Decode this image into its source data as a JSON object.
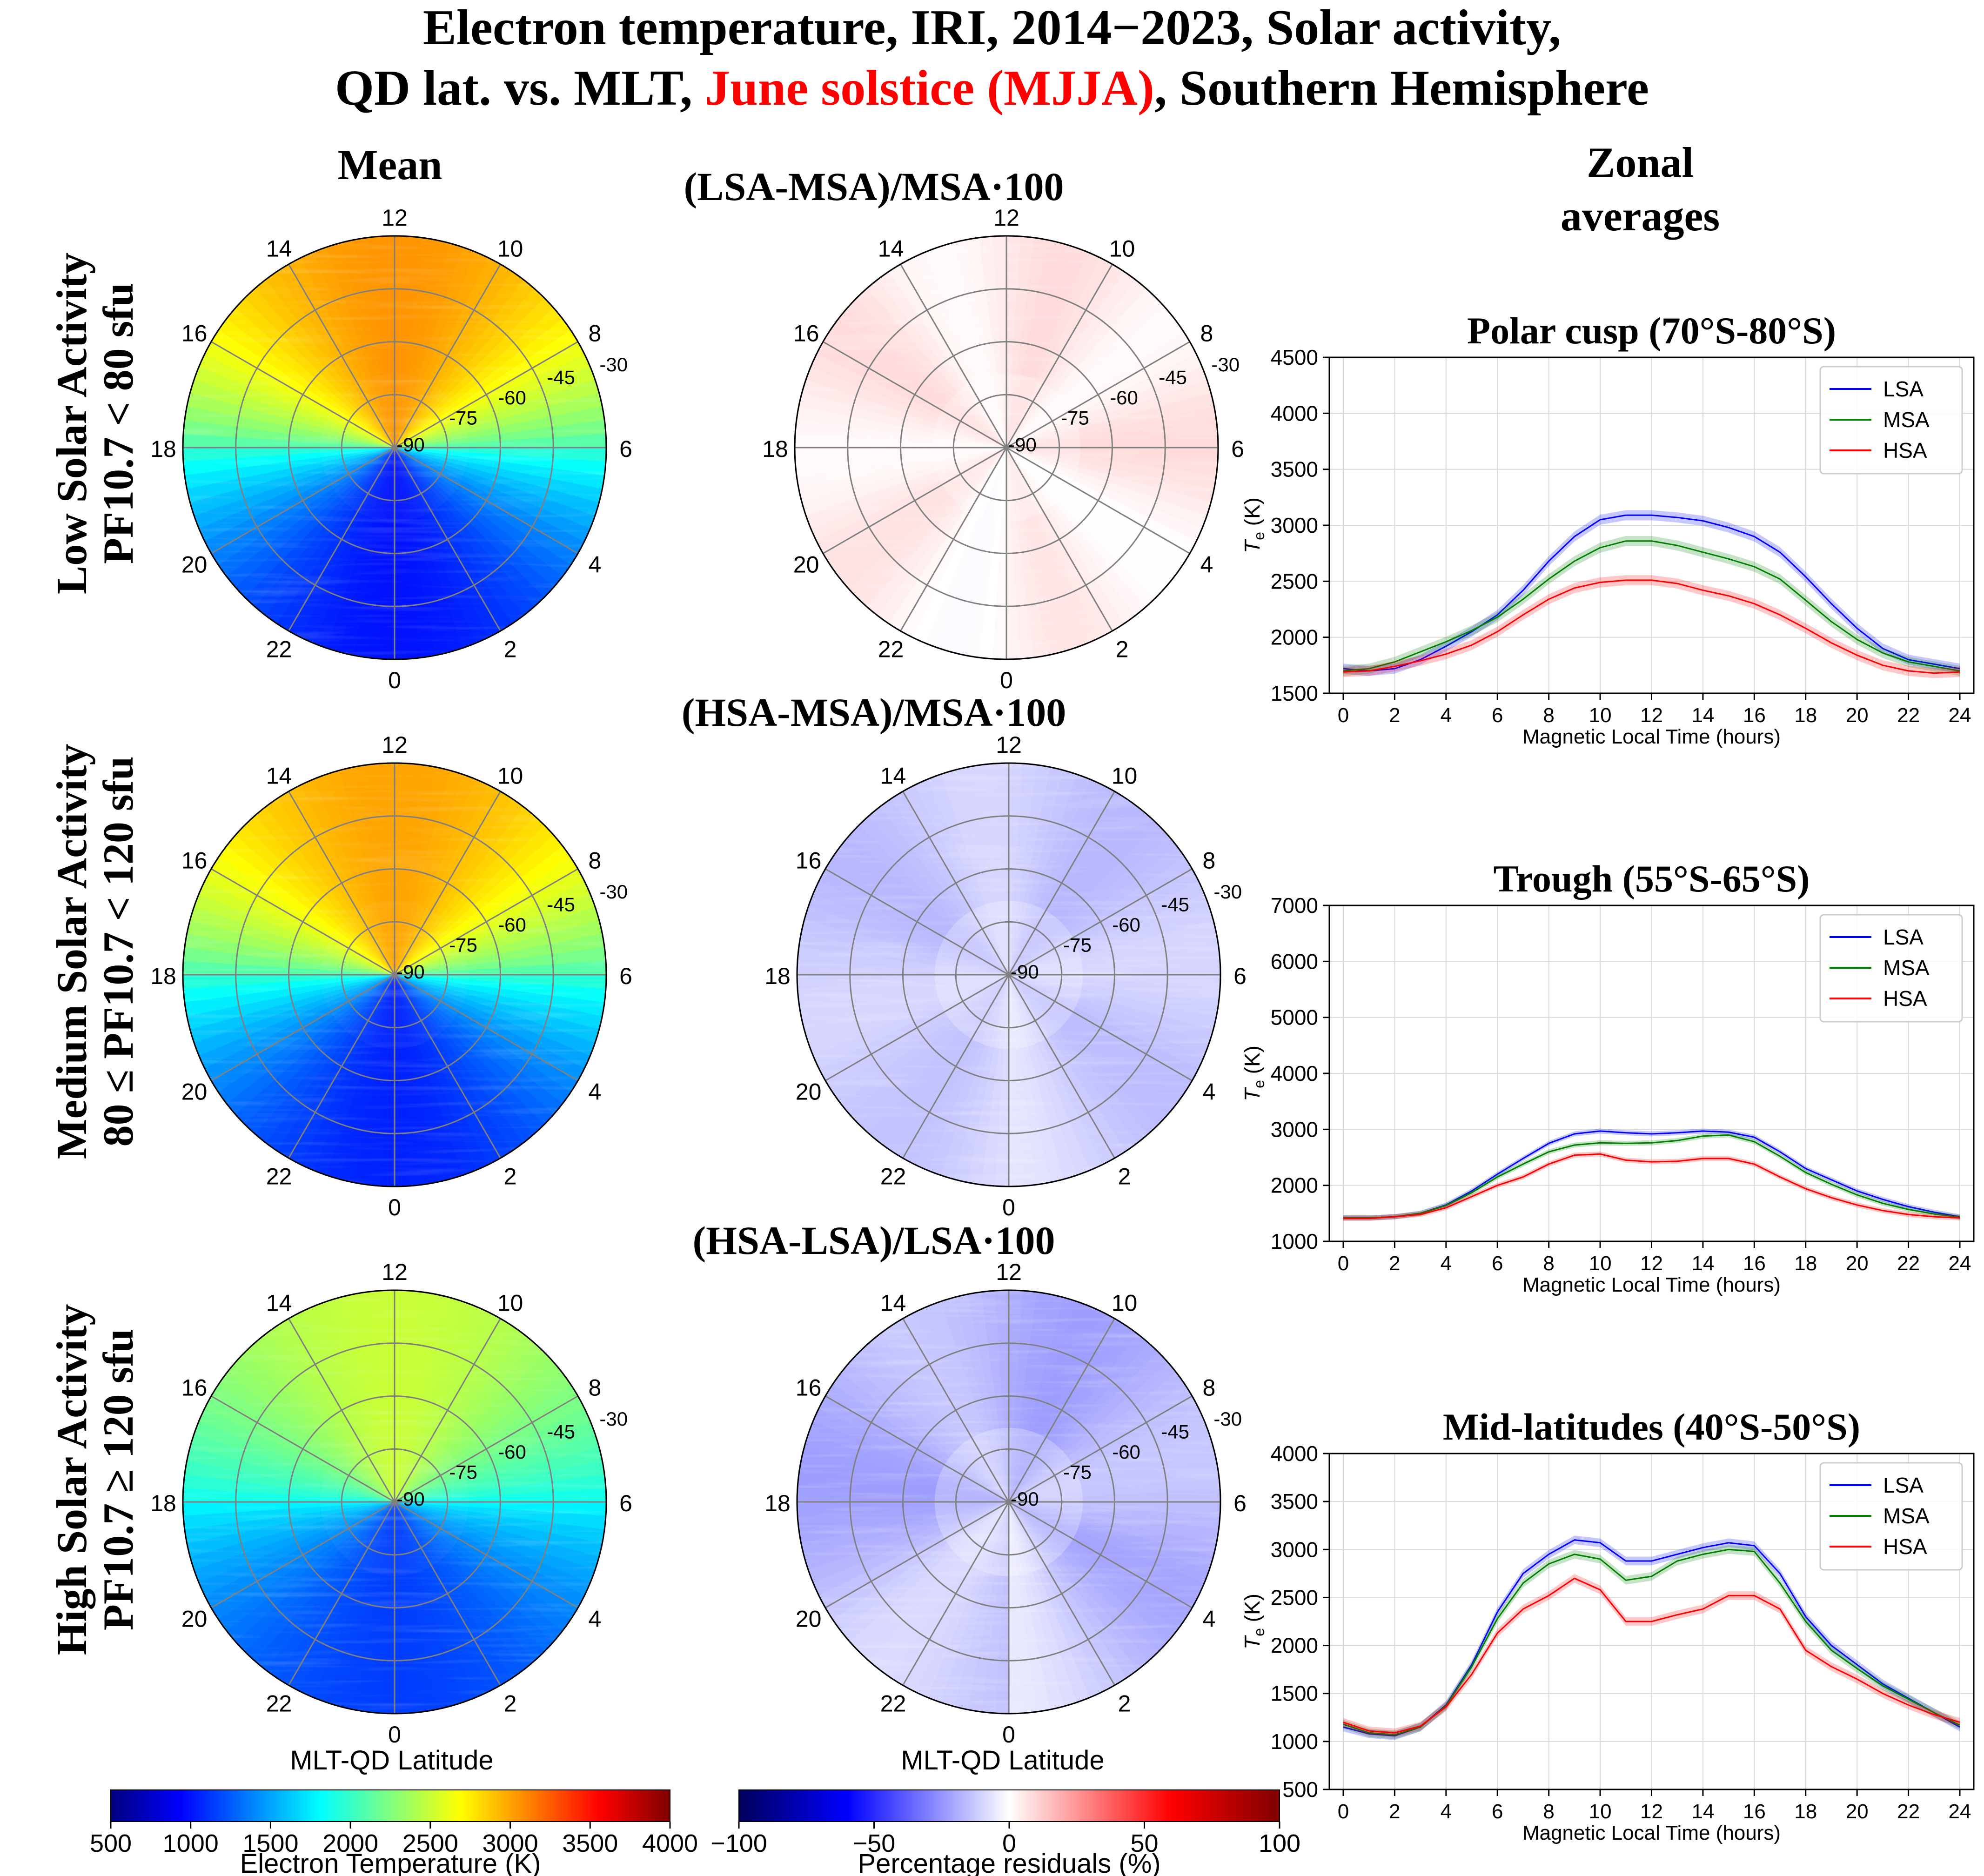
{
  "figure": {
    "title_line1": "Electron temperature, IRI, 2014−2023, Solar activity,",
    "title_line2_a": "QD lat. vs. MLT, ",
    "title_line2_red": "June solstice (MJJA)",
    "title_line2_b": ", Southern Hemisphere",
    "col_mean": "Mean",
    "col_zonal_1": "Zonal",
    "col_zonal_2": "averages",
    "colors": {
      "red": "#ff0000",
      "lsa": "#0000ff",
      "msa": "#008000",
      "hsa": "#ff0000"
    }
  },
  "rows": [
    {
      "line1": "Low Solar Activity",
      "line2": "PF10.7 < 80 sfu"
    },
    {
      "line1": "Medium Solar Activity",
      "line2": "80 ≤ PF10.7 < 120 sfu"
    },
    {
      "line1": "High Solar Activity",
      "line2": "PF10.7 ≥ 120 sfu"
    }
  ],
  "polar": {
    "mlt_labels": [
      "0",
      "2",
      "4",
      "6",
      "8",
      "10",
      "12",
      "14",
      "16",
      "18",
      "20",
      "22"
    ],
    "lat_labels": [
      "-90",
      "-75",
      "-60",
      "-45",
      "-30"
    ],
    "xlabel": "MLT-QD Latitude",
    "mean_max_temp_K": [
      3050,
      3000,
      2500
    ],
    "mean_min_temp_K": [
      1000,
      1050,
      1150
    ],
    "residual_titles": [
      "(LSA-MSA)/MSA·100",
      "(HSA-MSA)/MSA·100",
      "(HSA-LSA)/LSA·100"
    ]
  },
  "colorbars": {
    "temperature": {
      "label": "Electron Temperature (K)",
      "ticks": [
        "500",
        "1000",
        "1500",
        "2000",
        "2500",
        "3000",
        "3500",
        "4000"
      ],
      "range": [
        500,
        4000
      ]
    },
    "residual": {
      "label": "Percentage residuals (%)",
      "ticks": [
        "−100",
        "−50",
        "0",
        "50",
        "100"
      ],
      "range": [
        -100,
        100
      ]
    }
  },
  "chart_data": [
    {
      "type": "line",
      "title": "Polar cusp (70°S-80°S)",
      "xlabel": "Magnetic Local Time (hours)",
      "ylabel_main": "T",
      "ylabel_sub": "e",
      "ylabel_unit": " (K)",
      "xlim": [
        0,
        24
      ],
      "ylim": [
        1500,
        4500
      ],
      "xticks": [
        0,
        2,
        4,
        6,
        8,
        10,
        12,
        14,
        16,
        18,
        20,
        22,
        24
      ],
      "yticks": [
        1500,
        2000,
        2500,
        3000,
        3500,
        4000,
        4500
      ],
      "x": [
        0,
        1,
        2,
        3,
        4,
        5,
        6,
        7,
        8,
        9,
        10,
        11,
        12,
        13,
        14,
        15,
        16,
        17,
        18,
        19,
        20,
        21,
        22,
        23,
        24
      ],
      "series": [
        {
          "name": "LSA",
          "values": [
            1720,
            1700,
            1720,
            1800,
            1920,
            2050,
            2200,
            2420,
            2680,
            2900,
            3050,
            3090,
            3090,
            3070,
            3040,
            2980,
            2900,
            2760,
            2540,
            2300,
            2080,
            1900,
            1800,
            1760,
            1720
          ]
        },
        {
          "name": "MSA",
          "values": [
            1700,
            1720,
            1780,
            1870,
            1960,
            2060,
            2180,
            2340,
            2520,
            2680,
            2800,
            2860,
            2860,
            2820,
            2760,
            2700,
            2630,
            2520,
            2330,
            2140,
            1980,
            1860,
            1780,
            1740,
            1700
          ]
        },
        {
          "name": "HSA",
          "values": [
            1690,
            1700,
            1740,
            1790,
            1850,
            1930,
            2050,
            2200,
            2340,
            2440,
            2490,
            2510,
            2510,
            2480,
            2420,
            2370,
            2300,
            2200,
            2080,
            1950,
            1840,
            1750,
            1700,
            1680,
            1690
          ]
        }
      ]
    },
    {
      "type": "line",
      "title": "Trough (55°S-65°S)",
      "xlabel": "Magnetic Local Time (hours)",
      "ylabel_main": "T",
      "ylabel_sub": "e",
      "ylabel_unit": " (K)",
      "xlim": [
        0,
        24
      ],
      "ylim": [
        1000,
        7000
      ],
      "xticks": [
        0,
        2,
        4,
        6,
        8,
        10,
        12,
        14,
        16,
        18,
        20,
        22,
        24
      ],
      "yticks": [
        1000,
        2000,
        3000,
        4000,
        5000,
        6000,
        7000
      ],
      "x": [
        0,
        1,
        2,
        3,
        4,
        5,
        6,
        7,
        8,
        9,
        10,
        11,
        12,
        13,
        14,
        15,
        16,
        17,
        18,
        19,
        20,
        21,
        22,
        23,
        24
      ],
      "series": [
        {
          "name": "LSA",
          "values": [
            1420,
            1420,
            1440,
            1500,
            1650,
            1900,
            2200,
            2480,
            2750,
            2920,
            2970,
            2940,
            2920,
            2940,
            2970,
            2950,
            2860,
            2600,
            2300,
            2100,
            1900,
            1750,
            1620,
            1520,
            1440
          ]
        },
        {
          "name": "MSA",
          "values": [
            1420,
            1420,
            1440,
            1500,
            1640,
            1870,
            2150,
            2380,
            2600,
            2720,
            2760,
            2750,
            2760,
            2800,
            2880,
            2900,
            2780,
            2520,
            2230,
            2020,
            1830,
            1680,
            1570,
            1490,
            1430
          ]
        },
        {
          "name": "HSA",
          "values": [
            1410,
            1410,
            1440,
            1480,
            1600,
            1800,
            2000,
            2150,
            2380,
            2540,
            2560,
            2450,
            2420,
            2430,
            2480,
            2480,
            2380,
            2150,
            1940,
            1780,
            1650,
            1550,
            1480,
            1440,
            1420
          ]
        }
      ]
    },
    {
      "type": "line",
      "title": "Mid-latitudes (40°S-50°S)",
      "xlabel": "Magnetic Local Time (hours)",
      "ylabel_main": "T",
      "ylabel_sub": "e",
      "ylabel_unit": " (K)",
      "xlim": [
        0,
        24
      ],
      "ylim": [
        500,
        4000
      ],
      "xticks": [
        0,
        2,
        4,
        6,
        8,
        10,
        12,
        14,
        16,
        18,
        20,
        22,
        24
      ],
      "yticks": [
        500,
        1000,
        1500,
        2000,
        2500,
        3000,
        3500,
        4000
      ],
      "x": [
        0,
        1,
        2,
        3,
        4,
        5,
        6,
        7,
        8,
        9,
        10,
        11,
        12,
        13,
        14,
        15,
        16,
        17,
        18,
        19,
        20,
        21,
        22,
        23,
        24
      ],
      "series": [
        {
          "name": "LSA",
          "values": [
            1150,
            1080,
            1060,
            1150,
            1380,
            1800,
            2350,
            2750,
            2950,
            3100,
            3070,
            2880,
            2880,
            2950,
            3020,
            3070,
            3040,
            2750,
            2300,
            2000,
            1800,
            1600,
            1450,
            1300,
            1150
          ]
        },
        {
          "name": "MSA",
          "values": [
            1180,
            1090,
            1070,
            1150,
            1370,
            1780,
            2280,
            2650,
            2850,
            2950,
            2900,
            2680,
            2720,
            2880,
            2950,
            3000,
            2980,
            2650,
            2250,
            1950,
            1760,
            1580,
            1440,
            1300,
            1170
          ]
        },
        {
          "name": "HSA",
          "values": [
            1200,
            1110,
            1090,
            1160,
            1360,
            1700,
            2130,
            2380,
            2520,
            2700,
            2580,
            2250,
            2250,
            2320,
            2380,
            2520,
            2520,
            2380,
            1950,
            1780,
            1650,
            1500,
            1380,
            1280,
            1200
          ]
        }
      ]
    }
  ]
}
